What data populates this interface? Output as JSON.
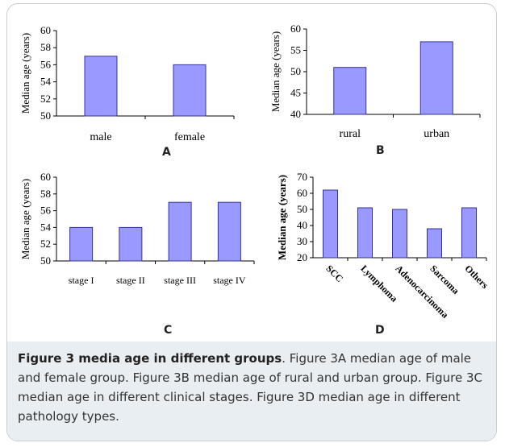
{
  "page": {
    "background": "#ffffff",
    "frame_border": "#c8cdd3",
    "caption_background": "#e9eef3"
  },
  "bar_color": "#9999ff",
  "bar_stroke": "#333399",
  "chart_data": [
    {
      "type": "bar",
      "panel_label": "A",
      "categories": [
        "male",
        "female"
      ],
      "values": [
        57,
        56
      ],
      "title": "",
      "xlabel": "",
      "ylabel": "Median age (years)",
      "ylim": [
        50,
        60
      ],
      "yticks": [
        50,
        52,
        54,
        56,
        58,
        60
      ],
      "grid": false,
      "rotate_xlabels": false
    },
    {
      "type": "bar",
      "panel_label": "B",
      "categories": [
        "rural",
        "urban"
      ],
      "values": [
        51,
        57
      ],
      "title": "",
      "xlabel": "",
      "ylabel": "Median age (years)",
      "ylim": [
        40,
        60
      ],
      "yticks": [
        40,
        45,
        50,
        55,
        60
      ],
      "grid": false,
      "rotate_xlabels": false
    },
    {
      "type": "bar",
      "panel_label": "C",
      "categories": [
        "stage I",
        "stage II",
        "stage III",
        "stage IV"
      ],
      "values": [
        54,
        54,
        57,
        57
      ],
      "title": "",
      "xlabel": "",
      "ylabel": "Median age (years)",
      "ylim": [
        50,
        60
      ],
      "yticks": [
        50,
        52,
        54,
        56,
        58,
        60
      ],
      "grid": false,
      "rotate_xlabels": false
    },
    {
      "type": "bar",
      "panel_label": "D",
      "categories": [
        "SCC",
        "Lymphoma",
        "Adenocarcinoma",
        "Sarcoma",
        "Others"
      ],
      "values": [
        62,
        51,
        50,
        38,
        51
      ],
      "title": "",
      "xlabel": "",
      "ylabel": "Median age (years)",
      "ylim": [
        20,
        70
      ],
      "yticks": [
        20,
        30,
        40,
        50,
        60,
        70
      ],
      "grid": false,
      "rotate_xlabels": true
    }
  ],
  "caption": {
    "title": "Figure 3 media age in different groups",
    "text": ". Figure 3A median age of male and female group. Figure 3B median age of rural and urban group. Figure 3C median age in different clinical stages. Figure 3D median age in different pathology types."
  }
}
